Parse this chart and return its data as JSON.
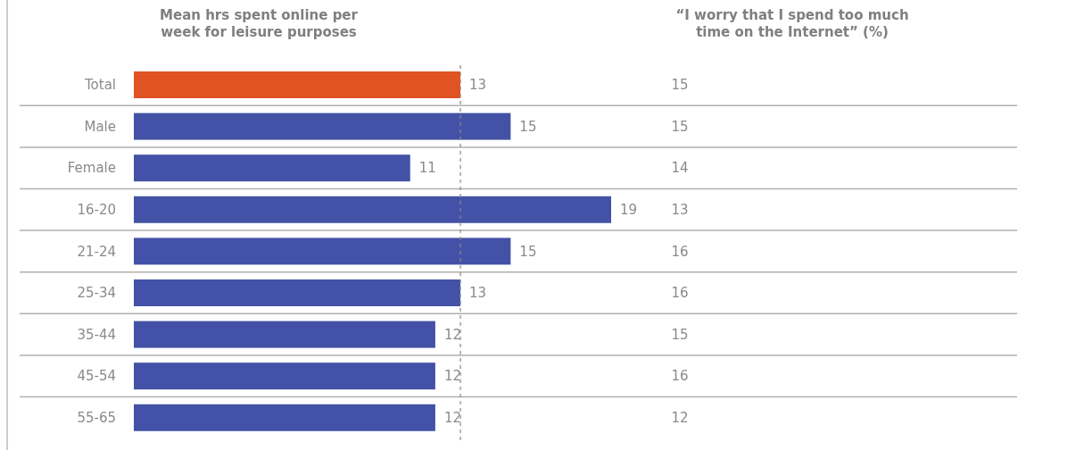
{
  "chart_data": [
    {
      "type": "bar",
      "orientation": "horizontal",
      "title": "Mean hrs spent online per week for leisure purposes",
      "categories": [
        "Total",
        "Male",
        "Female",
        "16-20",
        "21-24",
        "25-34",
        "35-44",
        "45-54",
        "55-65"
      ],
      "values": [
        13,
        15,
        11,
        19,
        15,
        13,
        12,
        12,
        12
      ],
      "colors": [
        "#e05322",
        "#4351a6",
        "#4351a6",
        "#4351a6",
        "#4351a6",
        "#4351a6",
        "#4351a6",
        "#4351a6",
        "#4351a6"
      ],
      "data_labels": true,
      "ref_lines": [
        {
          "axis": "x",
          "value": 13,
          "color": "#888888",
          "line_style": "dashed"
        }
      ]
    },
    {
      "type": "other",
      "title": "“I worry that I spend too much time on the Internet” (%)",
      "categories": [
        null,
        null,
        null,
        null,
        null,
        null,
        null,
        null,
        null
      ],
      "values": [
        15,
        15,
        14,
        13,
        16,
        16,
        15,
        16,
        12
      ],
      "data_labels": true
    }
  ]
}
